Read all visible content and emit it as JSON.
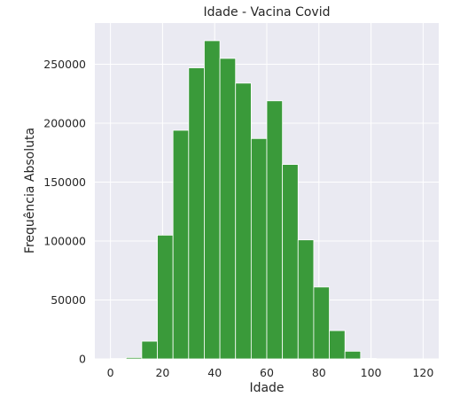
{
  "chart_data": {
    "type": "bar",
    "title": "Idade - Vacina Covid",
    "xlabel": "Idade",
    "ylabel": "Frequência Absoluta",
    "bin_width": 6,
    "bins": [
      {
        "start": 0,
        "end": 6,
        "value": 300
      },
      {
        "start": 6,
        "end": 12,
        "value": 1200
      },
      {
        "start": 12,
        "end": 18,
        "value": 15000
      },
      {
        "start": 18,
        "end": 24,
        "value": 105000
      },
      {
        "start": 24,
        "end": 30,
        "value": 194000
      },
      {
        "start": 30,
        "end": 36,
        "value": 247000
      },
      {
        "start": 36,
        "end": 42,
        "value": 270000
      },
      {
        "start": 42,
        "end": 48,
        "value": 255000
      },
      {
        "start": 48,
        "end": 54,
        "value": 234000
      },
      {
        "start": 54,
        "end": 60,
        "value": 187000
      },
      {
        "start": 60,
        "end": 66,
        "value": 219000
      },
      {
        "start": 66,
        "end": 72,
        "value": 165000
      },
      {
        "start": 72,
        "end": 78,
        "value": 101000
      },
      {
        "start": 78,
        "end": 84,
        "value": 61000
      },
      {
        "start": 84,
        "end": 90,
        "value": 24000
      },
      {
        "start": 90,
        "end": 96,
        "value": 6500
      },
      {
        "start": 96,
        "end": 102,
        "value": 400
      },
      {
        "start": 102,
        "end": 108,
        "value": 100
      },
      {
        "start": 108,
        "end": 114,
        "value": 50
      },
      {
        "start": 114,
        "end": 120,
        "value": 20
      }
    ],
    "xlim": [
      -6,
      126
    ],
    "ylim": [
      0,
      285000
    ],
    "xticks": [
      0,
      20,
      40,
      60,
      80,
      100,
      120
    ],
    "yticks": [
      0,
      50000,
      100000,
      150000,
      200000,
      250000
    ],
    "grid": true,
    "background": "#eaeaf2",
    "grid_color": "#ffffff",
    "bar_color": "#3a9a3a",
    "bar_edge_color": "#ffffff"
  }
}
